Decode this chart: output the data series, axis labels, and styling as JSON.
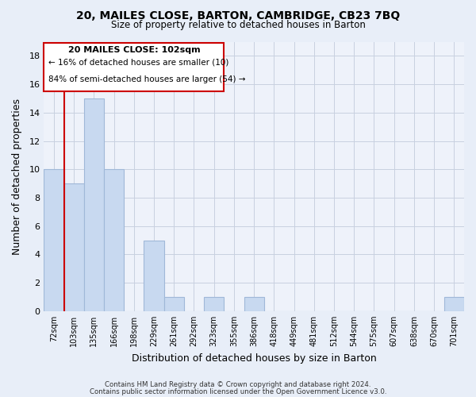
{
  "title": "20, MAILES CLOSE, BARTON, CAMBRIDGE, CB23 7BQ",
  "subtitle": "Size of property relative to detached houses in Barton",
  "xlabel": "Distribution of detached houses by size in Barton",
  "ylabel": "Number of detached properties",
  "bar_color": "#c8d9f0",
  "bar_edge_color": "#a0b8d8",
  "marker_color": "#cc0000",
  "categories": [
    "72sqm",
    "103sqm",
    "135sqm",
    "166sqm",
    "198sqm",
    "229sqm",
    "261sqm",
    "292sqm",
    "323sqm",
    "355sqm",
    "386sqm",
    "418sqm",
    "449sqm",
    "481sqm",
    "512sqm",
    "544sqm",
    "575sqm",
    "607sqm",
    "638sqm",
    "670sqm",
    "701sqm"
  ],
  "values": [
    10,
    9,
    15,
    10,
    0,
    5,
    1,
    0,
    1,
    0,
    1,
    0,
    0,
    0,
    0,
    0,
    0,
    0,
    0,
    0,
    1
  ],
  "ylim": [
    0,
    19
  ],
  "yticks": [
    0,
    2,
    4,
    6,
    8,
    10,
    12,
    14,
    16,
    18
  ],
  "marker_bar_index": 0,
  "annotation_title": "20 MAILES CLOSE: 102sqm",
  "annotation_line1": "← 16% of detached houses are smaller (10)",
  "annotation_line2": "84% of semi-detached houses are larger (54) →",
  "footer1": "Contains HM Land Registry data © Crown copyright and database right 2024.",
  "footer2": "Contains public sector information licensed under the Open Government Licence v3.0.",
  "bg_color": "#e8eef8",
  "plot_bg_color": "#eef2fa",
  "grid_color": "#c8d0e0"
}
